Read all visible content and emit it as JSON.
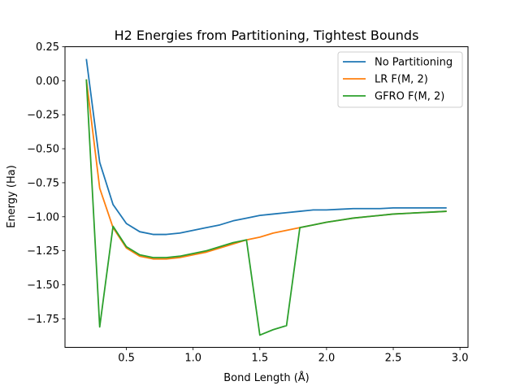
{
  "chart_data": {
    "type": "line",
    "title": "H2 Energies from Partitioning, Tightest Bounds",
    "xlabel": "Bond Length (Å)",
    "ylabel": "Energy (Ha)",
    "xlim": [
      0.04,
      3.06
    ],
    "ylim": [
      -1.96,
      0.25
    ],
    "xticks": [
      0.5,
      1.0,
      1.5,
      2.0,
      2.5,
      3.0
    ],
    "xtick_labels": [
      "0.5",
      "1.0",
      "1.5",
      "2.0",
      "2.5",
      "3.0"
    ],
    "yticks": [
      0.25,
      0.0,
      -0.25,
      -0.5,
      -0.75,
      -1.0,
      -1.25,
      -1.5,
      -1.75
    ],
    "ytick_labels": [
      "0.25",
      "0.00",
      "−0.25",
      "−0.50",
      "−0.75",
      "−1.00",
      "−1.25",
      "−1.50",
      "−1.75"
    ],
    "grid": false,
    "legend_position": "top-right",
    "x": [
      0.2,
      0.3,
      0.4,
      0.5,
      0.6,
      0.7,
      0.8,
      0.9,
      1.0,
      1.1,
      1.2,
      1.3,
      1.4,
      1.5,
      1.6,
      1.7,
      1.8,
      1.9,
      2.0,
      2.1,
      2.2,
      2.3,
      2.4,
      2.5,
      2.6,
      2.7,
      2.8,
      2.9
    ],
    "series": [
      {
        "name": "No Partitioning",
        "color": "#1f77b4",
        "values": [
          0.16,
          -0.6,
          -0.91,
          -1.05,
          -1.11,
          -1.13,
          -1.13,
          -1.12,
          -1.1,
          -1.08,
          -1.06,
          -1.03,
          -1.01,
          -0.99,
          -0.98,
          -0.97,
          -0.96,
          -0.95,
          -0.95,
          -0.945,
          -0.94,
          -0.94,
          -0.94,
          -0.935,
          -0.935,
          -0.935,
          -0.935,
          -0.935
        ]
      },
      {
        "name": "LR F(M, 2)",
        "color": "#ff7f0e",
        "values": [
          0.01,
          -0.79,
          -1.08,
          -1.23,
          -1.29,
          -1.31,
          -1.31,
          -1.3,
          -1.28,
          -1.26,
          -1.23,
          -1.2,
          -1.17,
          -1.15,
          -1.12,
          -1.1,
          -1.08,
          -1.06,
          -1.04,
          -1.025,
          -1.01,
          -1.0,
          -0.99,
          -0.98,
          -0.975,
          -0.97,
          -0.965,
          -0.96
        ]
      },
      {
        "name": "GFRO F(M, 2)",
        "color": "#2ca02c",
        "values": [
          0.01,
          -1.81,
          -1.07,
          -1.22,
          -1.28,
          -1.3,
          -1.3,
          -1.29,
          -1.27,
          -1.25,
          -1.22,
          -1.19,
          -1.17,
          -1.87,
          -1.83,
          -1.8,
          -1.08,
          -1.06,
          -1.04,
          -1.025,
          -1.01,
          -1.0,
          -0.99,
          -0.98,
          -0.975,
          -0.97,
          -0.965,
          -0.96
        ]
      }
    ]
  }
}
